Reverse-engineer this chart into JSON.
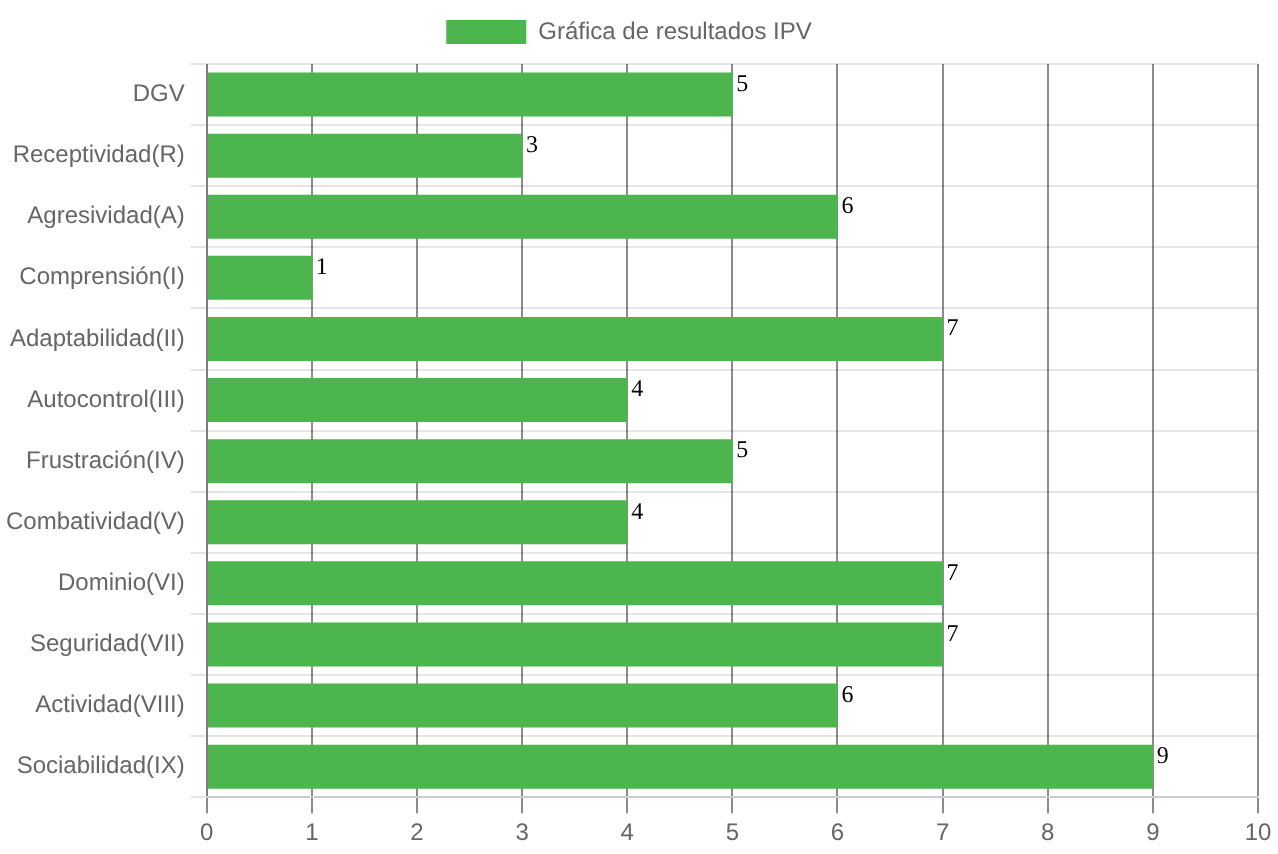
{
  "chart_data": {
    "type": "bar",
    "orientation": "horizontal",
    "categories": [
      "DGV",
      "Receptividad(R)",
      "Agresividad(A)",
      "Comprensión(I)",
      "Adaptabilidad(II)",
      "Autocontrol(III)",
      "Frustración(IV)",
      "Combatividad(V)",
      "Dominio(VI)",
      "Seguridad(VII)",
      "Actividad(VIII)",
      "Sociabilidad(IX)"
    ],
    "series": [
      {
        "name": "Gráfica de resultados IPV",
        "color": "#4db54d",
        "values": [
          5,
          3,
          6,
          1,
          7,
          4,
          5,
          4,
          7,
          7,
          6,
          9
        ]
      }
    ],
    "xlim": [
      0,
      10
    ],
    "xticks": [
      0,
      1,
      2,
      3,
      4,
      5,
      6,
      7,
      8,
      9,
      10
    ],
    "grid": true,
    "legend": "top",
    "data_labels": true
  }
}
